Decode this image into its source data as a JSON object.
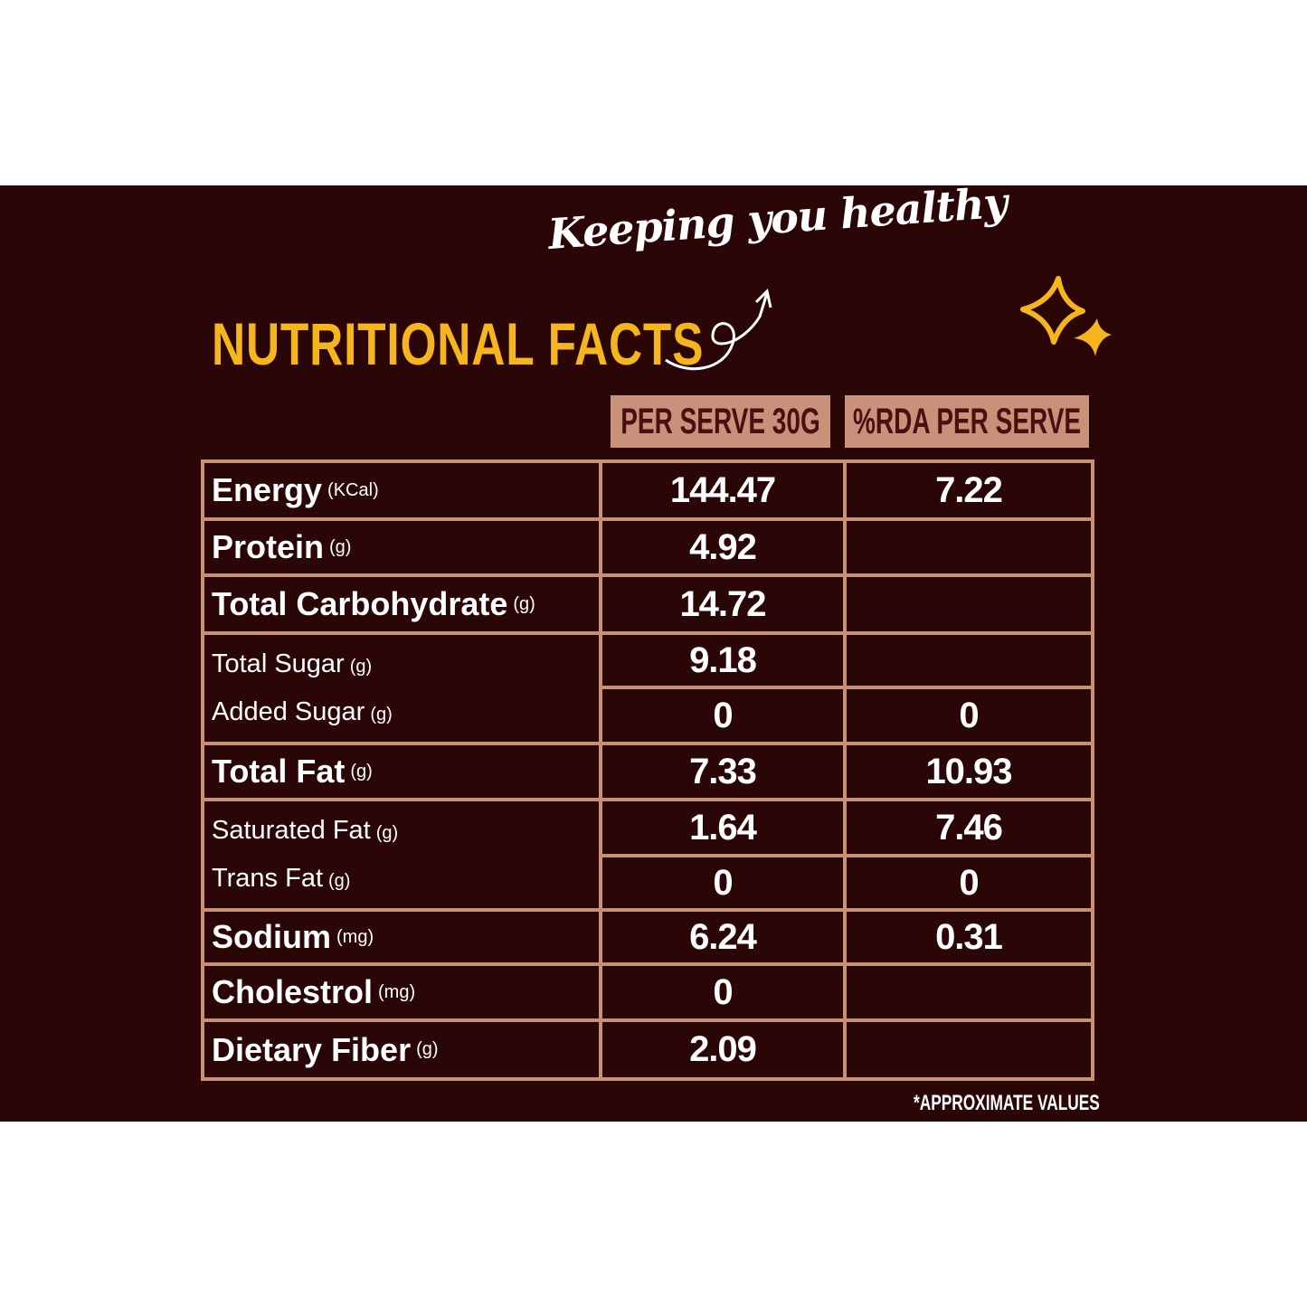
{
  "tagline": "Keeping you healthy",
  "title": "NUTRITIONAL FACTS",
  "headers": [
    "PER SERVE 30G",
    "%RDA PER SERVE"
  ],
  "rows": {
    "energy": {
      "label": "Energy",
      "unit": "(KCal)",
      "serve": "144.47",
      "rda": "7.22"
    },
    "protein": {
      "label": "Protein",
      "unit": "(g)",
      "serve": "4.92",
      "rda": ""
    },
    "carb": {
      "label": "Total Carbohydrate",
      "unit": "(g)",
      "serve": "14.72",
      "rda": ""
    },
    "sugar": {
      "label": "Total Sugar",
      "unit": "(g)",
      "serve": "9.18",
      "rda": ""
    },
    "added_sugar": {
      "label": "Added Sugar",
      "unit": "(g)",
      "serve": "0",
      "rda": "0"
    },
    "fat": {
      "label": "Total Fat",
      "unit": "(g)",
      "serve": "7.33",
      "rda": "10.93"
    },
    "sat_fat": {
      "label": "Saturated Fat",
      "unit": "(g)",
      "serve": "1.64",
      "rda": "7.46"
    },
    "trans_fat": {
      "label": "Trans Fat",
      "unit": "(g)",
      "serve": "0",
      "rda": "0"
    },
    "sodium": {
      "label": "Sodium",
      "unit": "(mg)",
      "serve": "6.24",
      "rda": "0.31"
    },
    "cholesterol": {
      "label": "Cholestrol",
      "unit": "(mg)",
      "serve": "0",
      "rda": ""
    },
    "fiber": {
      "label": "Dietary Fiber",
      "unit": "(g)",
      "serve": "2.09",
      "rda": ""
    }
  },
  "footnote": "*APPROXIMATE VALUES",
  "colors": {
    "background": "#2a0606",
    "accent": "#f5b51c",
    "border": "#c89074",
    "header_bg": "#c8917a",
    "header_text": "#4a1010"
  }
}
